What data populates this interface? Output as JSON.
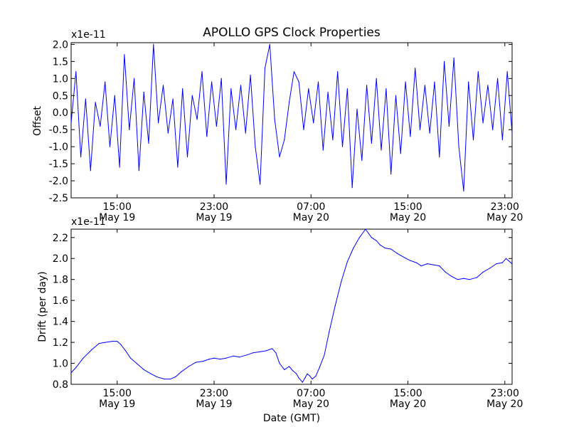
{
  "title": "APOLLO GPS Clock Properties",
  "chart_data": [
    {
      "type": "line",
      "ylabel": "Offset",
      "xlabel": "",
      "offset_text": "x1e-11",
      "ylim": [
        -2.5,
        2.05
      ],
      "x_range_hours": [
        11.2,
        47.6
      ],
      "yticks": [
        {
          "value": 2.0,
          "label": "2.0"
        },
        {
          "value": 1.5,
          "label": "1.5"
        },
        {
          "value": 1.0,
          "label": "1.0"
        },
        {
          "value": 0.5,
          "label": "0.5"
        },
        {
          "value": 0.0,
          "label": "0.0"
        },
        {
          "value": -0.5,
          "label": "-0.5"
        },
        {
          "value": -1.0,
          "label": "-1.0"
        },
        {
          "value": -1.5,
          "label": "-1.5"
        },
        {
          "value": -2.0,
          "label": "-2.0"
        },
        {
          "value": -2.5,
          "label": "-2.5"
        }
      ],
      "xticks": [
        {
          "hours": 15,
          "time": "15:00",
          "date": "May 19"
        },
        {
          "hours": 23,
          "time": "23:00",
          "date": "May 19"
        },
        {
          "hours": 31,
          "time": "07:00",
          "date": "May 20"
        },
        {
          "hours": 39,
          "time": "15:00",
          "date": "May 20"
        },
        {
          "hours": 47,
          "time": "23:00",
          "date": "May 20"
        }
      ],
      "color": "#0000ff",
      "series": [
        {
          "x_hours": [
            11.2,
            11.6,
            12.0,
            12.4,
            12.8,
            13.2,
            13.6,
            14.0,
            14.4,
            14.8,
            15.2,
            15.6,
            16.0,
            16.4,
            16.8,
            17.2,
            17.6,
            18.0,
            18.4,
            18.8,
            19.2,
            19.6,
            20.0,
            20.4,
            20.8,
            21.2,
            21.6,
            22.0,
            22.4,
            22.8,
            23.2,
            23.6,
            24.0,
            24.4,
            24.8,
            25.2,
            25.6,
            26.0,
            26.4,
            26.8,
            27.2,
            27.6,
            28.0,
            28.4,
            28.8,
            29.2,
            29.6,
            30.0,
            30.4,
            30.8,
            31.2,
            31.6,
            32.0,
            32.4,
            32.8,
            33.2,
            33.6,
            34.0,
            34.4,
            34.8,
            35.2,
            35.6,
            36.0,
            36.4,
            36.8,
            37.2,
            37.6,
            38.0,
            38.4,
            38.8,
            39.2,
            39.6,
            40.0,
            40.4,
            40.8,
            41.2,
            41.6,
            42.0,
            42.4,
            42.8,
            43.2,
            43.6,
            44.0,
            44.4,
            44.8,
            45.2,
            45.6,
            46.0,
            46.4,
            46.8,
            47.2,
            47.6
          ],
          "values": [
            -0.3,
            1.2,
            -1.3,
            0.4,
            -1.7,
            0.3,
            -0.4,
            0.9,
            -1.0,
            0.5,
            -1.6,
            1.7,
            -0.5,
            1.0,
            -1.7,
            0.6,
            -0.9,
            2.0,
            -0.3,
            0.8,
            -0.6,
            0.4,
            -1.6,
            0.7,
            -1.3,
            0.5,
            -0.2,
            1.2,
            -0.7,
            0.9,
            -0.4,
            1.0,
            -2.1,
            0.7,
            -0.5,
            0.8,
            -0.6,
            1.1,
            -1.0,
            -2.1,
            1.3,
            2.0,
            -0.2,
            -1.3,
            -0.8,
            0.3,
            1.2,
            0.9,
            -0.5,
            0.7,
            -0.3,
            0.9,
            -1.1,
            0.6,
            -0.8,
            1.2,
            -1.0,
            0.7,
            -2.2,
            0.1,
            -1.4,
            0.8,
            -0.9,
            1.0,
            -1.1,
            0.7,
            -1.8,
            0.5,
            -1.2,
            0.9,
            -0.7,
            1.3,
            -0.5,
            0.8,
            -0.6,
            0.9,
            -1.3,
            1.5,
            -0.4,
            1.6,
            -1.0,
            -2.3,
            0.9,
            -0.8,
            1.2,
            -0.3,
            0.8,
            -0.5,
            1.0,
            -0.8,
            1.2,
            -0.6
          ]
        }
      ]
    },
    {
      "type": "line",
      "ylabel": "Drift (per day)",
      "xlabel": "Date (GMT)",
      "offset_text": "x1e-11",
      "ylim": [
        0.8,
        2.28
      ],
      "x_range_hours": [
        11.2,
        47.6
      ],
      "yticks": [
        {
          "value": 2.2,
          "label": "2.2"
        },
        {
          "value": 2.0,
          "label": "2.0"
        },
        {
          "value": 1.8,
          "label": "1.8"
        },
        {
          "value": 1.6,
          "label": "1.6"
        },
        {
          "value": 1.4,
          "label": "1.4"
        },
        {
          "value": 1.2,
          "label": "1.2"
        },
        {
          "value": 1.0,
          "label": "1.0"
        },
        {
          "value": 0.8,
          "label": "0.8"
        }
      ],
      "xticks": [
        {
          "hours": 15,
          "time": "15:00",
          "date": "May 19"
        },
        {
          "hours": 23,
          "time": "23:00",
          "date": "May 19"
        },
        {
          "hours": 31,
          "time": "07:00",
          "date": "May 20"
        },
        {
          "hours": 39,
          "time": "15:00",
          "date": "May 20"
        },
        {
          "hours": 47,
          "time": "23:00",
          "date": "May 20"
        }
      ],
      "color": "#0000ff",
      "series": [
        {
          "x_hours": [
            11.2,
            11.6,
            12.2,
            12.9,
            13.5,
            14.0,
            14.6,
            15.0,
            15.3,
            15.7,
            16.1,
            16.6,
            17.2,
            17.8,
            18.3,
            18.9,
            19.4,
            19.8,
            20.3,
            20.9,
            21.5,
            22.1,
            22.6,
            23.0,
            23.5,
            24.0,
            24.6,
            25.1,
            25.7,
            26.2,
            26.8,
            27.3,
            27.8,
            28.1,
            28.4,
            28.8,
            29.2,
            29.5,
            29.8,
            30.0,
            30.3,
            30.5,
            30.7,
            30.9,
            31.1,
            31.4,
            31.7,
            32.1,
            32.5,
            33.0,
            33.5,
            34.0,
            34.5,
            35.0,
            35.5,
            36.0,
            36.4,
            36.7,
            37.1,
            37.6,
            38.1,
            38.7,
            39.2,
            39.7,
            40.1,
            40.6,
            41.1,
            41.6,
            42.1,
            42.6,
            43.1,
            43.6,
            44.1,
            44.7,
            45.2,
            45.8,
            46.3,
            46.8,
            47.1,
            47.3,
            47.6
          ],
          "values": [
            0.91,
            0.96,
            1.05,
            1.13,
            1.19,
            1.2,
            1.21,
            1.21,
            1.18,
            1.12,
            1.05,
            1.0,
            0.94,
            0.9,
            0.87,
            0.85,
            0.85,
            0.87,
            0.92,
            0.97,
            1.01,
            1.02,
            1.04,
            1.05,
            1.04,
            1.05,
            1.07,
            1.06,
            1.08,
            1.1,
            1.11,
            1.12,
            1.14,
            1.1,
            1.0,
            0.94,
            0.97,
            0.93,
            0.9,
            0.86,
            0.82,
            0.86,
            0.9,
            0.88,
            0.85,
            0.88,
            0.96,
            1.08,
            1.3,
            1.55,
            1.78,
            1.97,
            2.1,
            2.2,
            2.28,
            2.2,
            2.17,
            2.13,
            2.1,
            2.09,
            2.05,
            2.01,
            1.98,
            1.96,
            1.93,
            1.95,
            1.94,
            1.93,
            1.87,
            1.83,
            1.8,
            1.81,
            1.8,
            1.82,
            1.87,
            1.91,
            1.95,
            1.96,
            2.0,
            1.98,
            1.95
          ]
        }
      ]
    }
  ]
}
